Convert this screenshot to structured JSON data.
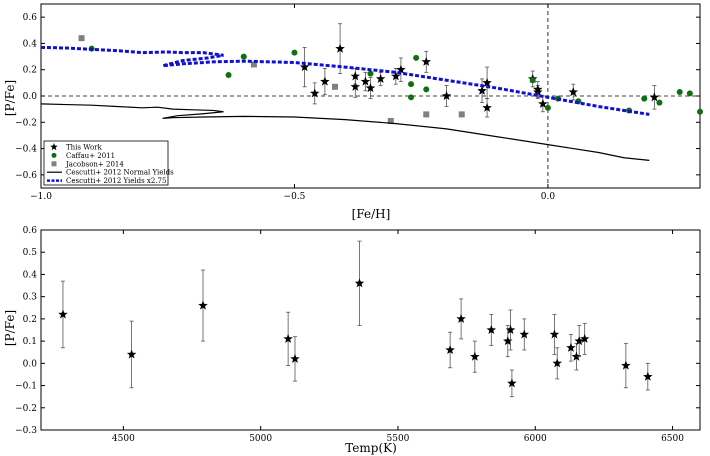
{
  "chart_data": [
    {
      "type": "scatter",
      "title": "",
      "xlabel": "[Fe/H]",
      "ylabel": "[P/Fe]",
      "xlim": [
        -1.0,
        0.3
      ],
      "ylim": [
        -0.7,
        0.7
      ],
      "xticks": [
        "−1.0",
        "−0.5",
        "0.0"
      ],
      "yticks": [
        "−0.6",
        "−0.4",
        "−0.2",
        "0.0",
        "0.2",
        "0.4",
        "0.6"
      ],
      "reference_lines": {
        "y": 0.0,
        "x": 0.0
      },
      "legend": {
        "position": "bottom-left",
        "entries": [
          "This Work",
          "Caffau+ 2011",
          "Jacobson+ 2014",
          "Cescutti+ 2012 Normal Yields",
          "Cescutti+ 2012 Yields x2.75"
        ]
      },
      "series": [
        {
          "name": "This Work",
          "marker": "star",
          "color": "#000000",
          "points": [
            {
              "x": -0.41,
              "y": 0.36,
              "err": 0.19
            },
            {
              "x": -0.48,
              "y": 0.22,
              "err": 0.15
            },
            {
              "x": -0.46,
              "y": 0.02,
              "err": 0.08
            },
            {
              "x": -0.44,
              "y": 0.11,
              "err": 0.1
            },
            {
              "x": -0.38,
              "y": 0.07,
              "err": 0.08
            },
            {
              "x": -0.38,
              "y": 0.15,
              "err": 0.06
            },
            {
              "x": -0.36,
              "y": 0.11,
              "err": 0.07
            },
            {
              "x": -0.35,
              "y": 0.06,
              "err": 0.08
            },
            {
              "x": -0.33,
              "y": 0.13,
              "err": 0.05
            },
            {
              "x": -0.3,
              "y": 0.15,
              "err": 0.06
            },
            {
              "x": -0.29,
              "y": 0.2,
              "err": 0.09
            },
            {
              "x": -0.24,
              "y": 0.26,
              "err": 0.08
            },
            {
              "x": -0.2,
              "y": 0.0,
              "err": 0.08
            },
            {
              "x": -0.13,
              "y": 0.04,
              "err": 0.09
            },
            {
              "x": -0.12,
              "y": 0.1,
              "err": 0.12
            },
            {
              "x": -0.12,
              "y": -0.09,
              "err": 0.07
            },
            {
              "x": -0.03,
              "y": 0.13,
              "err": 0.06
            },
            {
              "x": -0.02,
              "y": 0.03,
              "err": 0.05
            },
            {
              "x": -0.02,
              "y": 0.05,
              "err": 0.06
            },
            {
              "x": -0.01,
              "y": -0.06,
              "err": 0.06
            },
            {
              "x": 0.05,
              "y": 0.03,
              "err": 0.06
            },
            {
              "x": 0.21,
              "y": -0.01,
              "err": 0.09
            }
          ]
        },
        {
          "name": "Caffau+ 2011",
          "marker": "circle",
          "color": "#107010",
          "points": [
            {
              "x": -0.9,
              "y": 0.36
            },
            {
              "x": -0.63,
              "y": 0.16
            },
            {
              "x": -0.6,
              "y": 0.3
            },
            {
              "x": -0.5,
              "y": 0.33
            },
            {
              "x": -0.35,
              "y": 0.17
            },
            {
              "x": -0.27,
              "y": 0.09
            },
            {
              "x": -0.27,
              "y": -0.01
            },
            {
              "x": -0.26,
              "y": 0.29
            },
            {
              "x": -0.24,
              "y": 0.05
            },
            {
              "x": -0.03,
              "y": 0.12
            },
            {
              "x": 0.0,
              "y": -0.09
            },
            {
              "x": 0.02,
              "y": -0.02
            },
            {
              "x": 0.06,
              "y": -0.04
            },
            {
              "x": 0.16,
              "y": -0.11
            },
            {
              "x": 0.19,
              "y": -0.02
            },
            {
              "x": 0.22,
              "y": -0.05
            },
            {
              "x": 0.26,
              "y": 0.03
            },
            {
              "x": 0.28,
              "y": 0.02
            },
            {
              "x": 0.3,
              "y": -0.12
            }
          ]
        },
        {
          "name": "Jacobson+ 2014",
          "marker": "square",
          "color": "#808080",
          "points": [
            {
              "x": -0.92,
              "y": 0.44
            },
            {
              "x": -0.58,
              "y": 0.24
            },
            {
              "x": -0.42,
              "y": 0.07
            },
            {
              "x": -0.31,
              "y": -0.19
            },
            {
              "x": -0.24,
              "y": -0.14
            },
            {
              "x": -0.17,
              "y": -0.14
            }
          ]
        },
        {
          "name": "Cescutti+ 2012 Normal Yields",
          "type": "line",
          "color": "#000000",
          "points": [
            {
              "x": -1.0,
              "y": -0.06
            },
            {
              "x": -0.95,
              "y": -0.065
            },
            {
              "x": -0.9,
              "y": -0.07
            },
            {
              "x": -0.85,
              "y": -0.08
            },
            {
              "x": -0.8,
              "y": -0.09
            },
            {
              "x": -0.77,
              "y": -0.085
            },
            {
              "x": -0.74,
              "y": -0.1
            },
            {
              "x": -0.7,
              "y": -0.105
            },
            {
              "x": -0.66,
              "y": -0.11
            },
            {
              "x": -0.64,
              "y": -0.12
            },
            {
              "x": -0.68,
              "y": -0.135
            },
            {
              "x": -0.73,
              "y": -0.15
            },
            {
              "x": -0.76,
              "y": -0.17
            },
            {
              "x": -0.74,
              "y": -0.165
            },
            {
              "x": -0.68,
              "y": -0.16
            },
            {
              "x": -0.6,
              "y": -0.155
            },
            {
              "x": -0.5,
              "y": -0.16
            },
            {
              "x": -0.4,
              "y": -0.18
            },
            {
              "x": -0.3,
              "y": -0.21
            },
            {
              "x": -0.2,
              "y": -0.25
            },
            {
              "x": -0.1,
              "y": -0.31
            },
            {
              "x": 0.0,
              "y": -0.37
            },
            {
              "x": 0.05,
              "y": -0.4
            },
            {
              "x": 0.1,
              "y": -0.43
            },
            {
              "x": 0.15,
              "y": -0.47
            },
            {
              "x": 0.2,
              "y": -0.49
            }
          ]
        },
        {
          "name": "Cescutti+ 2012 Yields x2.75",
          "type": "line",
          "style": "dashed",
          "color": "#1010d0",
          "points": [
            {
              "x": -1.0,
              "y": 0.37
            },
            {
              "x": -0.95,
              "y": 0.365
            },
            {
              "x": -0.9,
              "y": 0.355
            },
            {
              "x": -0.85,
              "y": 0.345
            },
            {
              "x": -0.8,
              "y": 0.33
            },
            {
              "x": -0.75,
              "y": 0.335
            },
            {
              "x": -0.72,
              "y": 0.33
            },
            {
              "x": -0.68,
              "y": 0.33
            },
            {
              "x": -0.64,
              "y": 0.31
            },
            {
              "x": -0.67,
              "y": 0.29
            },
            {
              "x": -0.72,
              "y": 0.27
            },
            {
              "x": -0.76,
              "y": 0.23
            },
            {
              "x": -0.72,
              "y": 0.245
            },
            {
              "x": -0.66,
              "y": 0.26
            },
            {
              "x": -0.6,
              "y": 0.265
            },
            {
              "x": -0.5,
              "y": 0.255
            },
            {
              "x": -0.4,
              "y": 0.22
            },
            {
              "x": -0.3,
              "y": 0.18
            },
            {
              "x": -0.2,
              "y": 0.12
            },
            {
              "x": -0.1,
              "y": 0.06
            },
            {
              "x": 0.0,
              "y": -0.01
            },
            {
              "x": 0.05,
              "y": -0.045
            },
            {
              "x": 0.1,
              "y": -0.08
            },
            {
              "x": 0.15,
              "y": -0.11
            },
            {
              "x": 0.2,
              "y": -0.14
            }
          ]
        }
      ]
    },
    {
      "type": "scatter",
      "title": "",
      "xlabel": "Temp(K)",
      "ylabel": "[P/Fe]",
      "xlim": [
        4200,
        6600
      ],
      "ylim": [
        -0.3,
        0.6
      ],
      "xticks": [
        "4500",
        "5000",
        "5500",
        "6000",
        "6500"
      ],
      "yticks": [
        "−0.3",
        "−0.2",
        "−0.1",
        "0.0",
        "0.1",
        "0.2",
        "0.3",
        "0.4",
        "0.5",
        "0.6"
      ],
      "series": [
        {
          "name": "This Work",
          "marker": "star",
          "color": "#000000",
          "points": [
            {
              "x": 4280,
              "y": 0.22,
              "err": 0.15
            },
            {
              "x": 4530,
              "y": 0.04,
              "err": 0.15
            },
            {
              "x": 4790,
              "y": 0.26,
              "err": 0.16
            },
            {
              "x": 5100,
              "y": 0.11,
              "err": 0.12
            },
            {
              "x": 5125,
              "y": 0.02,
              "err": 0.1
            },
            {
              "x": 5360,
              "y": 0.36,
              "err": 0.19
            },
            {
              "x": 5690,
              "y": 0.06,
              "err": 0.08
            },
            {
              "x": 5730,
              "y": 0.2,
              "err": 0.09
            },
            {
              "x": 5780,
              "y": 0.03,
              "err": 0.07
            },
            {
              "x": 5840,
              "y": 0.15,
              "err": 0.07
            },
            {
              "x": 5900,
              "y": 0.1,
              "err": 0.07
            },
            {
              "x": 5910,
              "y": 0.15,
              "err": 0.09
            },
            {
              "x": 5915,
              "y": -0.09,
              "err": 0.06
            },
            {
              "x": 5960,
              "y": 0.13,
              "err": 0.07
            },
            {
              "x": 6070,
              "y": 0.13,
              "err": 0.09
            },
            {
              "x": 6080,
              "y": 0.0,
              "err": 0.07
            },
            {
              "x": 6130,
              "y": 0.07,
              "err": 0.06
            },
            {
              "x": 6150,
              "y": 0.03,
              "err": 0.06
            },
            {
              "x": 6160,
              "y": 0.1,
              "err": 0.07
            },
            {
              "x": 6180,
              "y": 0.11,
              "err": 0.07
            },
            {
              "x": 6330,
              "y": -0.01,
              "err": 0.1
            },
            {
              "x": 6410,
              "y": -0.06,
              "err": 0.06
            }
          ]
        }
      ]
    }
  ]
}
